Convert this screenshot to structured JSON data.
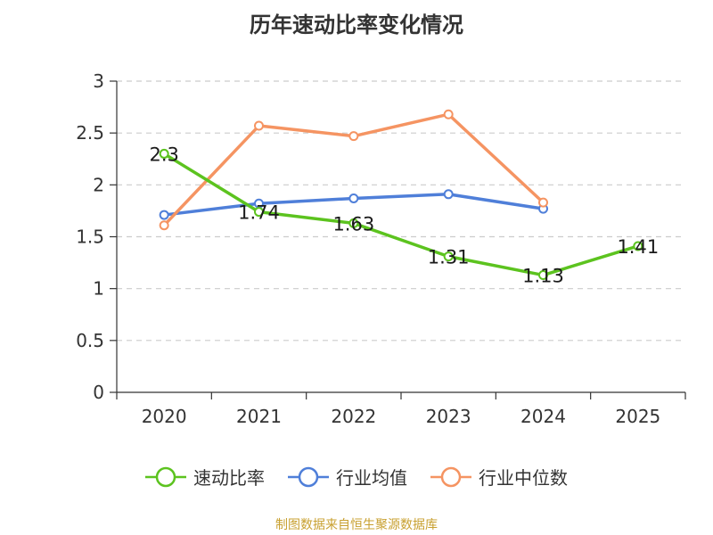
{
  "chart_data": {
    "type": "line",
    "title": "历年速动比率变化情况",
    "categories": [
      "2020",
      "2021",
      "2022",
      "2023",
      "2024",
      "2025"
    ],
    "ylim": [
      0,
      3
    ],
    "yticks": [
      0,
      0.5,
      1,
      1.5,
      2,
      2.5,
      3
    ],
    "ytick_labels": [
      "0",
      "0.5",
      "1",
      "1.5",
      "2",
      "2.5",
      "3"
    ],
    "grid": true,
    "legend_position": "bottom",
    "series": [
      {
        "name": "速动比率",
        "color": "#5cc31f",
        "values": [
          2.3,
          1.74,
          1.63,
          1.31,
          1.13,
          1.41
        ],
        "labels": [
          "2.3",
          "1.74",
          "1.63",
          "1.31",
          "1.13",
          "1.41"
        ]
      },
      {
        "name": "行业均值",
        "color": "#4f7fd9",
        "values": [
          1.71,
          1.82,
          1.87,
          1.91,
          1.77,
          null
        ],
        "labels": []
      },
      {
        "name": "行业中位数",
        "color": "#f59462",
        "values": [
          1.61,
          2.57,
          2.47,
          2.68,
          1.83,
          null
        ],
        "labels": []
      }
    ]
  },
  "source": "制图数据来自恒生聚源数据库"
}
